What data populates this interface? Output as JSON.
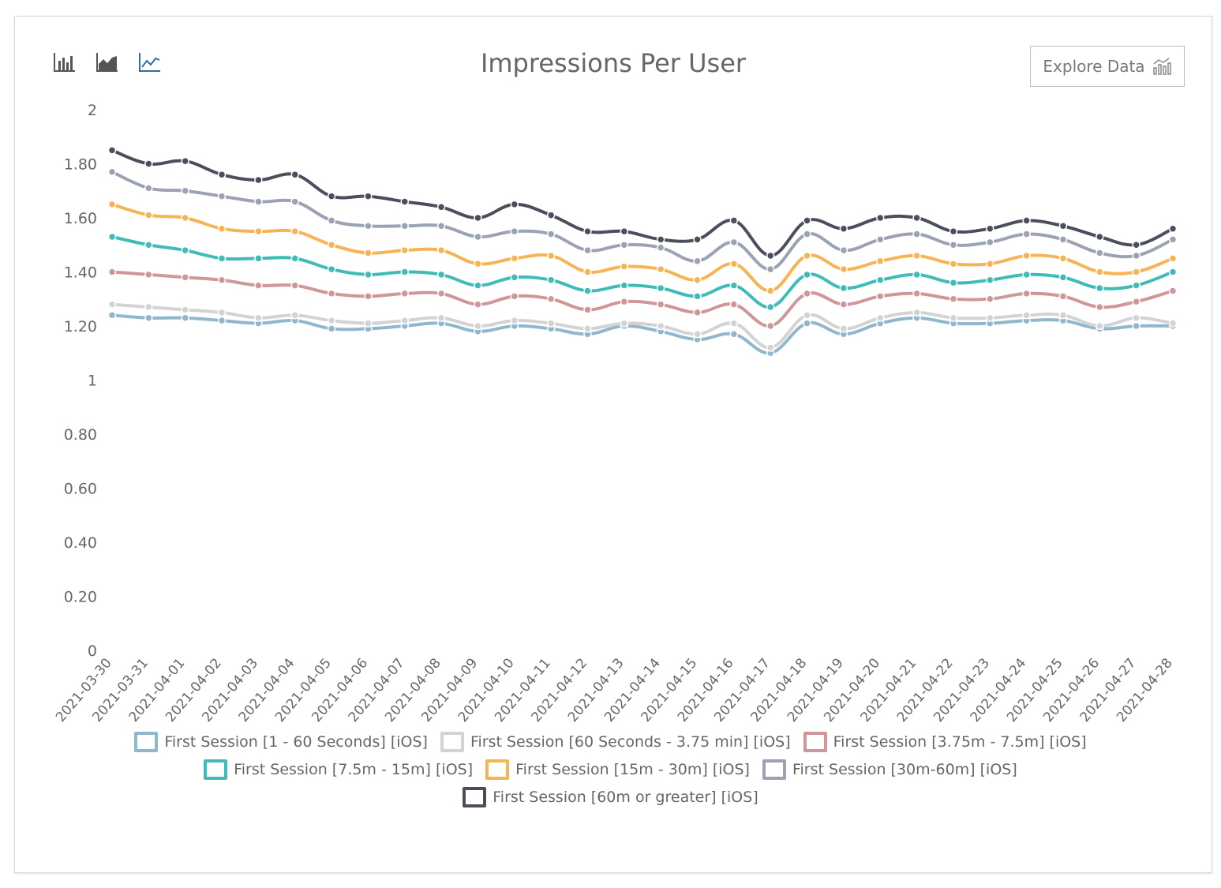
{
  "toolbar": {
    "chart_types": [
      {
        "name": "bar-chart-icon",
        "active": false
      },
      {
        "name": "area-chart-icon",
        "active": false
      },
      {
        "name": "line-chart-icon",
        "active": true
      }
    ],
    "explore_label": "Explore Data",
    "explore_icon": "bar-chart-explore-icon"
  },
  "colors": {
    "active_icon": "#2f6fa6",
    "inactive_icon": "#555555"
  },
  "chart_data": {
    "type": "line",
    "title": "Impressions Per User",
    "xlabel": "",
    "ylabel": "",
    "ylim": [
      0,
      2
    ],
    "yticks": [
      "0",
      "0.20",
      "0.40",
      "0.60",
      "0.80",
      "1",
      "1.20",
      "1.40",
      "1.60",
      "1.80",
      "2"
    ],
    "grid": false,
    "legend_position": "bottom",
    "categories": [
      "2021-03-30",
      "2021-03-31",
      "2021-04-01",
      "2021-04-02",
      "2021-04-03",
      "2021-04-04",
      "2021-04-05",
      "2021-04-06",
      "2021-04-07",
      "2021-04-08",
      "2021-04-09",
      "2021-04-10",
      "2021-04-11",
      "2021-04-12",
      "2021-04-13",
      "2021-04-14",
      "2021-04-15",
      "2021-04-16",
      "2021-04-17",
      "2021-04-18",
      "2021-04-19",
      "2021-04-20",
      "2021-04-21",
      "2021-04-22",
      "2021-04-23",
      "2021-04-24",
      "2021-04-25",
      "2021-04-26",
      "2021-04-27",
      "2021-04-28"
    ],
    "series": [
      {
        "name": "First Session [1 - 60 Seconds] [iOS]",
        "color": "#8fb8cf",
        "values": [
          1.24,
          1.23,
          1.23,
          1.22,
          1.21,
          1.22,
          1.19,
          1.19,
          1.2,
          1.21,
          1.18,
          1.2,
          1.19,
          1.17,
          1.2,
          1.18,
          1.15,
          1.17,
          1.1,
          1.21,
          1.17,
          1.21,
          1.23,
          1.21,
          1.21,
          1.22,
          1.22,
          1.19,
          1.2,
          1.2
        ]
      },
      {
        "name": "First Session [60 Seconds - 3.75 min] [iOS]",
        "color": "#d3d3d3",
        "values": [
          1.28,
          1.27,
          1.26,
          1.25,
          1.23,
          1.24,
          1.22,
          1.21,
          1.22,
          1.23,
          1.2,
          1.22,
          1.21,
          1.19,
          1.21,
          1.2,
          1.17,
          1.21,
          1.12,
          1.24,
          1.19,
          1.23,
          1.25,
          1.23,
          1.23,
          1.24,
          1.24,
          1.2,
          1.23,
          1.21
        ]
      },
      {
        "name": "First Session [3.75m - 7.5m] [iOS]",
        "color": "#cf9799",
        "values": [
          1.4,
          1.39,
          1.38,
          1.37,
          1.35,
          1.35,
          1.32,
          1.31,
          1.32,
          1.32,
          1.28,
          1.31,
          1.3,
          1.26,
          1.29,
          1.28,
          1.25,
          1.28,
          1.2,
          1.32,
          1.28,
          1.31,
          1.32,
          1.3,
          1.3,
          1.32,
          1.31,
          1.27,
          1.29,
          1.33
        ]
      },
      {
        "name": "First Session [7.5m - 15m] [iOS]",
        "color": "#3fbcb8",
        "values": [
          1.53,
          1.5,
          1.48,
          1.45,
          1.45,
          1.45,
          1.41,
          1.39,
          1.4,
          1.39,
          1.35,
          1.38,
          1.37,
          1.33,
          1.35,
          1.34,
          1.31,
          1.35,
          1.27,
          1.39,
          1.34,
          1.37,
          1.39,
          1.36,
          1.37,
          1.39,
          1.38,
          1.34,
          1.35,
          1.4
        ]
      },
      {
        "name": "First Session [15m - 30m] [iOS]",
        "color": "#f7b454",
        "values": [
          1.65,
          1.61,
          1.6,
          1.56,
          1.55,
          1.55,
          1.5,
          1.47,
          1.48,
          1.48,
          1.43,
          1.45,
          1.46,
          1.4,
          1.42,
          1.41,
          1.37,
          1.43,
          1.33,
          1.46,
          1.41,
          1.44,
          1.46,
          1.43,
          1.43,
          1.46,
          1.45,
          1.4,
          1.4,
          1.45
        ]
      },
      {
        "name": "First Session [30m-60m] [iOS]",
        "color": "#9aa2b4",
        "values": [
          1.77,
          1.71,
          1.7,
          1.68,
          1.66,
          1.66,
          1.59,
          1.57,
          1.57,
          1.57,
          1.53,
          1.55,
          1.54,
          1.48,
          1.5,
          1.49,
          1.44,
          1.51,
          1.41,
          1.54,
          1.48,
          1.52,
          1.54,
          1.5,
          1.51,
          1.54,
          1.52,
          1.47,
          1.46,
          1.52
        ]
      },
      {
        "name": "First Session [60m or greater] [iOS]",
        "color": "#4a4f5c",
        "values": [
          1.85,
          1.8,
          1.81,
          1.76,
          1.74,
          1.76,
          1.68,
          1.68,
          1.66,
          1.64,
          1.6,
          1.65,
          1.61,
          1.55,
          1.55,
          1.52,
          1.52,
          1.59,
          1.46,
          1.59,
          1.56,
          1.6,
          1.6,
          1.55,
          1.56,
          1.59,
          1.57,
          1.53,
          1.5,
          1.56
        ]
      }
    ]
  }
}
